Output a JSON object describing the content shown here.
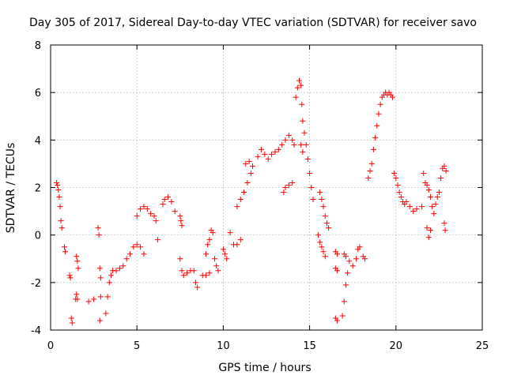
{
  "chart_data": {
    "type": "scatter",
    "title": "Day 305 of 2017, Sidereal Day-to-day VTEC variation (SDTVAR) for receiver savo",
    "xlabel": "GPS time / hours",
    "ylabel": "SDTVAR / TECUs",
    "xlim": [
      0,
      25
    ],
    "ylim": [
      -4,
      8
    ],
    "xticks": [
      "0",
      "5",
      "10",
      "15",
      "20",
      "25"
    ],
    "yticks": [
      "-4",
      "-2",
      "0",
      "2",
      "4",
      "6",
      "8"
    ],
    "grid": true,
    "marker": "+",
    "color": "#ff0000",
    "series": [
      {
        "name": "SDTVAR",
        "points": [
          [
            0.35,
            2.2
          ],
          [
            0.4,
            2.1
          ],
          [
            0.45,
            1.9
          ],
          [
            0.5,
            1.6
          ],
          [
            0.55,
            1.2
          ],
          [
            0.6,
            0.6
          ],
          [
            0.65,
            0.3
          ],
          [
            0.8,
            -0.5
          ],
          [
            0.85,
            -0.7
          ],
          [
            1.1,
            -1.7
          ],
          [
            1.15,
            -1.8
          ],
          [
            1.2,
            -3.5
          ],
          [
            1.25,
            -3.7
          ],
          [
            1.45,
            -2.7
          ],
          [
            1.5,
            -2.5
          ],
          [
            1.55,
            -2.7
          ],
          [
            1.5,
            -0.9
          ],
          [
            1.55,
            -1.1
          ],
          [
            1.6,
            -1.4
          ],
          [
            2.2,
            -2.8
          ],
          [
            2.5,
            -2.7
          ],
          [
            2.75,
            0.3
          ],
          [
            2.8,
            0.0
          ],
          [
            2.85,
            -1.4
          ],
          [
            2.9,
            -1.8
          ],
          [
            2.9,
            -2.6
          ],
          [
            2.85,
            -3.6
          ],
          [
            3.2,
            -3.3
          ],
          [
            3.3,
            -2.6
          ],
          [
            3.4,
            -2.0
          ],
          [
            3.5,
            -1.7
          ],
          [
            3.6,
            -1.5
          ],
          [
            3.8,
            -1.5
          ],
          [
            4.0,
            -1.4
          ],
          [
            4.2,
            -1.3
          ],
          [
            4.4,
            -1.0
          ],
          [
            4.6,
            -0.8
          ],
          [
            4.8,
            -0.5
          ],
          [
            5.0,
            -0.4
          ],
          [
            5.2,
            -0.5
          ],
          [
            5.4,
            -0.8
          ],
          [
            5.0,
            0.8
          ],
          [
            5.2,
            1.1
          ],
          [
            5.4,
            1.2
          ],
          [
            5.6,
            1.1
          ],
          [
            5.8,
            0.9
          ],
          [
            6.0,
            0.8
          ],
          [
            6.1,
            0.6
          ],
          [
            6.2,
            -0.2
          ],
          [
            6.5,
            1.3
          ],
          [
            6.6,
            1.5
          ],
          [
            6.8,
            1.6
          ],
          [
            7.0,
            1.4
          ],
          [
            7.2,
            1.0
          ],
          [
            7.5,
            0.8
          ],
          [
            7.55,
            0.6
          ],
          [
            7.6,
            0.4
          ],
          [
            7.5,
            -1.0
          ],
          [
            7.6,
            -1.5
          ],
          [
            7.7,
            -1.7
          ],
          [
            7.9,
            -1.6
          ],
          [
            8.1,
            -1.5
          ],
          [
            8.3,
            -1.5
          ],
          [
            8.4,
            -2.0
          ],
          [
            8.5,
            -2.2
          ],
          [
            8.8,
            -1.7
          ],
          [
            9.0,
            -1.7
          ],
          [
            9.2,
            -1.6
          ],
          [
            9.0,
            -0.8
          ],
          [
            9.1,
            -0.4
          ],
          [
            9.2,
            -0.2
          ],
          [
            9.5,
            -1.0
          ],
          [
            9.6,
            -1.3
          ],
          [
            9.7,
            -1.5
          ],
          [
            9.3,
            0.2
          ],
          [
            9.4,
            0.1
          ],
          [
            10.0,
            -0.6
          ],
          [
            10.1,
            -0.8
          ],
          [
            10.2,
            -1.0
          ],
          [
            10.4,
            0.1
          ],
          [
            10.6,
            -0.4
          ],
          [
            10.8,
            -0.4
          ],
          [
            11.0,
            -0.2
          ],
          [
            10.8,
            1.2
          ],
          [
            11.0,
            1.5
          ],
          [
            11.2,
            1.8
          ],
          [
            11.4,
            2.2
          ],
          [
            11.6,
            2.6
          ],
          [
            11.3,
            3.0
          ],
          [
            11.5,
            3.1
          ],
          [
            11.7,
            2.9
          ],
          [
            12.0,
            3.3
          ],
          [
            12.2,
            3.6
          ],
          [
            12.4,
            3.4
          ],
          [
            12.6,
            3.2
          ],
          [
            12.8,
            3.4
          ],
          [
            13.0,
            3.5
          ],
          [
            13.2,
            3.6
          ],
          [
            13.4,
            3.8
          ],
          [
            13.6,
            4.0
          ],
          [
            13.8,
            4.2
          ],
          [
            14.0,
            4.0
          ],
          [
            14.1,
            3.8
          ],
          [
            13.5,
            1.8
          ],
          [
            13.6,
            2.0
          ],
          [
            13.8,
            2.1
          ],
          [
            14.0,
            2.2
          ],
          [
            14.2,
            5.8
          ],
          [
            14.3,
            6.2
          ],
          [
            14.4,
            6.5
          ],
          [
            14.5,
            6.3
          ],
          [
            14.55,
            5.5
          ],
          [
            14.6,
            4.8
          ],
          [
            14.7,
            4.3
          ],
          [
            14.8,
            3.8
          ],
          [
            14.9,
            3.2
          ],
          [
            15.0,
            2.6
          ],
          [
            15.1,
            2.0
          ],
          [
            15.2,
            1.5
          ],
          [
            14.5,
            3.8
          ],
          [
            14.6,
            3.5
          ],
          [
            15.6,
            1.8
          ],
          [
            15.7,
            1.5
          ],
          [
            15.8,
            1.2
          ],
          [
            15.9,
            0.8
          ],
          [
            16.0,
            0.5
          ],
          [
            16.1,
            0.3
          ],
          [
            15.5,
            0.0
          ],
          [
            15.6,
            -0.3
          ],
          [
            15.7,
            -0.5
          ],
          [
            15.8,
            -0.7
          ],
          [
            15.9,
            -0.9
          ],
          [
            16.5,
            -0.7
          ],
          [
            16.6,
            -0.8
          ],
          [
            16.5,
            -1.4
          ],
          [
            16.6,
            -1.5
          ],
          [
            16.5,
            -3.5
          ],
          [
            16.6,
            -3.6
          ],
          [
            16.9,
            -3.4
          ],
          [
            17.0,
            -2.8
          ],
          [
            17.1,
            -2.1
          ],
          [
            17.2,
            -1.6
          ],
          [
            17.3,
            -1.1
          ],
          [
            17.0,
            -0.8
          ],
          [
            17.1,
            -0.9
          ],
          [
            17.5,
            -1.3
          ],
          [
            17.7,
            -1.0
          ],
          [
            17.8,
            -0.6
          ],
          [
            17.9,
            -0.5
          ],
          [
            18.1,
            -0.9
          ],
          [
            18.2,
            -1.0
          ],
          [
            18.4,
            2.4
          ],
          [
            18.5,
            2.7
          ],
          [
            18.6,
            3.0
          ],
          [
            18.7,
            3.6
          ],
          [
            18.8,
            4.1
          ],
          [
            18.9,
            4.6
          ],
          [
            19.0,
            5.1
          ],
          [
            19.1,
            5.5
          ],
          [
            19.2,
            5.8
          ],
          [
            19.3,
            5.9
          ],
          [
            19.4,
            6.0
          ],
          [
            19.5,
            5.9
          ],
          [
            19.6,
            6.0
          ],
          [
            19.7,
            5.9
          ],
          [
            19.8,
            5.8
          ],
          [
            19.9,
            2.6
          ],
          [
            20.0,
            2.4
          ],
          [
            20.1,
            2.1
          ],
          [
            20.2,
            1.8
          ],
          [
            20.3,
            1.6
          ],
          [
            20.4,
            1.4
          ],
          [
            20.5,
            1.3
          ],
          [
            20.6,
            1.4
          ],
          [
            20.8,
            1.2
          ],
          [
            21.0,
            1.0
          ],
          [
            21.2,
            1.1
          ],
          [
            21.5,
            1.2
          ],
          [
            21.6,
            2.6
          ],
          [
            21.7,
            2.2
          ],
          [
            21.8,
            2.1
          ],
          [
            21.9,
            1.9
          ],
          [
            22.0,
            1.6
          ],
          [
            22.1,
            1.2
          ],
          [
            22.2,
            0.9
          ],
          [
            21.8,
            0.3
          ],
          [
            21.9,
            -0.1
          ],
          [
            22.0,
            0.2
          ],
          [
            22.3,
            1.3
          ],
          [
            22.4,
            1.6
          ],
          [
            22.5,
            1.8
          ],
          [
            22.6,
            2.4
          ],
          [
            22.7,
            2.8
          ],
          [
            22.8,
            2.9
          ],
          [
            22.9,
            2.7
          ],
          [
            22.8,
            0.5
          ],
          [
            22.85,
            0.2
          ]
        ]
      }
    ]
  }
}
